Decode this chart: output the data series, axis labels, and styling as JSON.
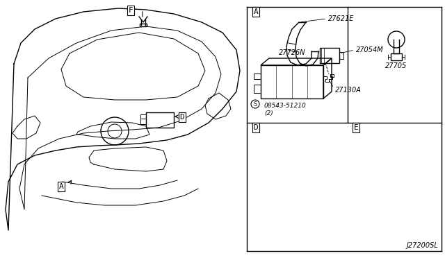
{
  "bg_color": "#ffffff",
  "line_color": "#000000",
  "label_color": "#000000",
  "diagram_code": "J27200SL",
  "part_numbers": {
    "part_A_top": "27621E",
    "part_A_mid": "27054M",
    "part_A_bot": "27130A",
    "part_D_top": "27726N",
    "part_D_bot": "08543-51210\n(2)",
    "part_E": "27705"
  }
}
